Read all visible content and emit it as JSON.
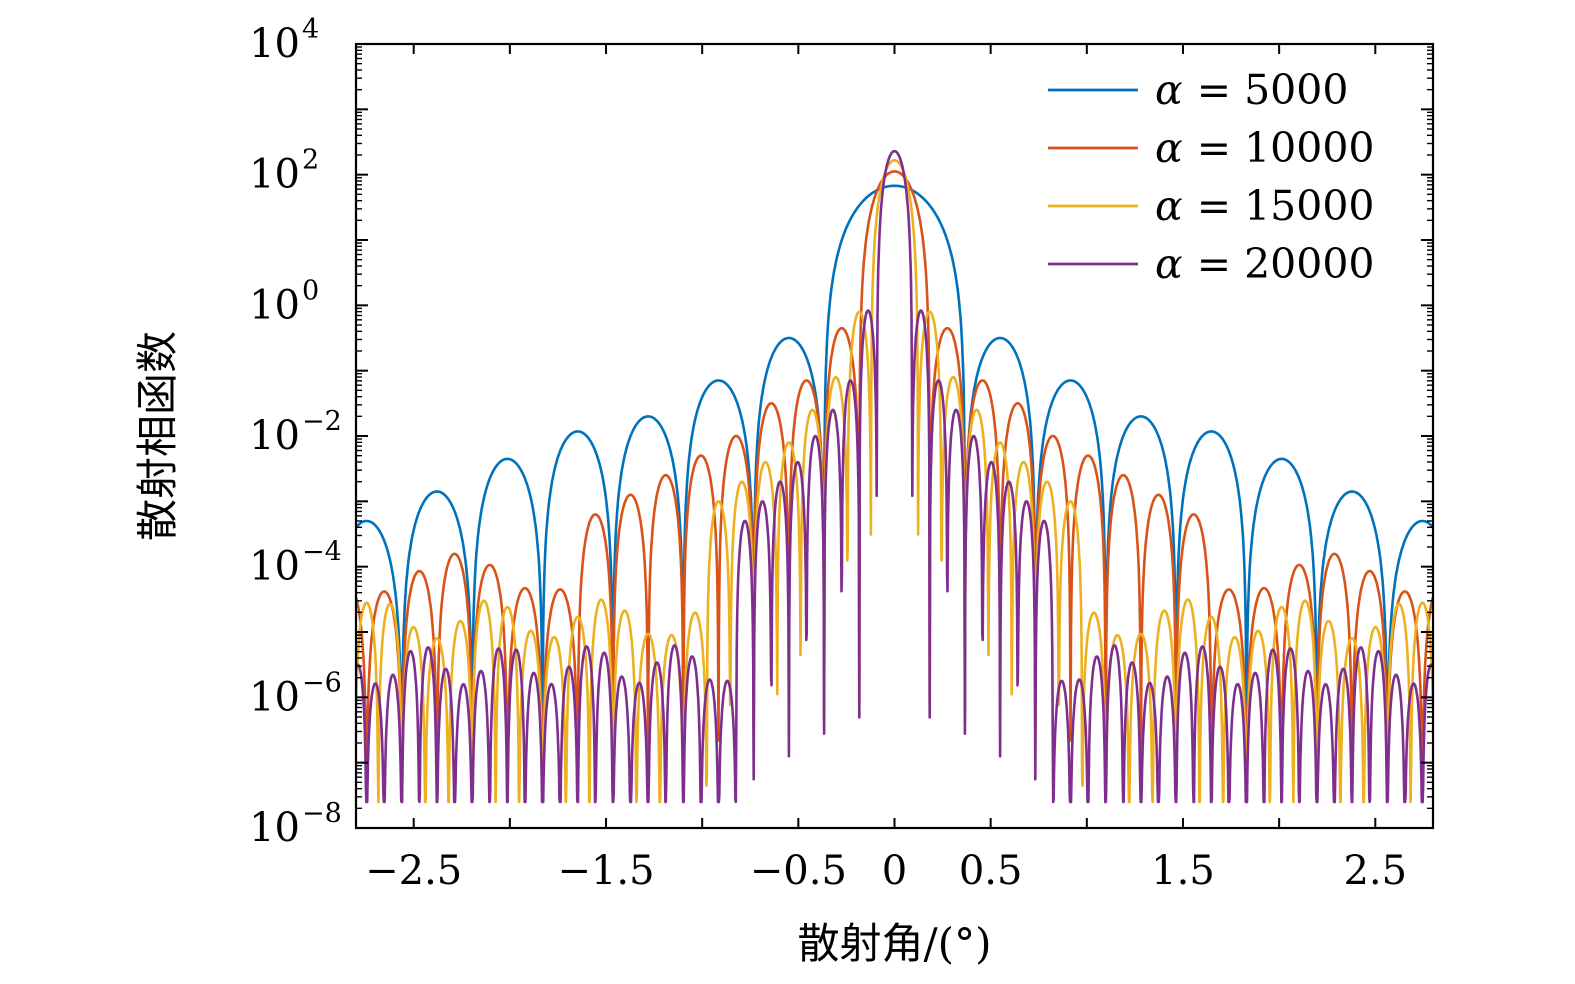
{
  "chart_data": {
    "type": "line",
    "title": "",
    "xlabel": "散射角/(°)",
    "ylabel": "散射相函数",
    "xlim": [
      -2.8,
      2.8
    ],
    "ylim_log10": [
      -8,
      4
    ],
    "x_ticks": [
      {
        "value": -2.5,
        "label": "−2.5"
      },
      {
        "value": -1.5,
        "label": "−1.5"
      },
      {
        "value": -0.5,
        "label": "−0.5"
      },
      {
        "value": 0,
        "label": "0"
      },
      {
        "value": 0.5,
        "label": "0.5"
      },
      {
        "value": 1.5,
        "label": "1.5"
      },
      {
        "value": 2.5,
        "label": "2.5"
      }
    ],
    "y_ticks": [
      {
        "value": 4,
        "base": "10",
        "exp": "4"
      },
      {
        "value": 2,
        "base": "10",
        "exp": "2"
      },
      {
        "value": 0,
        "base": "10",
        "exp": "0"
      },
      {
        "value": -2,
        "base": "10",
        "exp": "−2"
      },
      {
        "value": -4,
        "base": "10",
        "exp": "−4"
      },
      {
        "value": -6,
        "base": "10",
        "exp": "−6"
      },
      {
        "value": -8,
        "base": "10",
        "exp": "−8"
      }
    ],
    "legend_position": "top-right",
    "series": [
      {
        "name": "α = 5000",
        "alpha_symbol": "α",
        "label_value": "= 5000",
        "color": "#0072BD",
        "peak_log10": 1.83,
        "null_spacing_deg": 0.366,
        "floor_log10": -3.6,
        "sidelobe_log10": [
          -0.5,
          -1.15,
          -1.7,
          -1.93,
          -2.35,
          -2.85
        ]
      },
      {
        "name": "α = 10000",
        "alpha_symbol": "α",
        "label_value": "= 10000",
        "color": "#D95319",
        "peak_log10": 2.05,
        "null_spacing_deg": 0.183,
        "floor_log10": -4.1,
        "sidelobe_log10": [
          -0.35,
          -1.15,
          -1.5,
          -2.0,
          -2.3,
          -2.6,
          -2.9,
          -3.2
        ]
      },
      {
        "name": "α = 15000",
        "alpha_symbol": "α",
        "label_value": "= 15000",
        "color": "#EDB120",
        "peak_log10": 2.22,
        "null_spacing_deg": 0.122,
        "floor_log10": -4.8,
        "sidelobe_log10": [
          -0.1,
          -1.1,
          -1.6,
          -2.1,
          -2.4,
          -2.7,
          -3.0
        ]
      },
      {
        "name": "α = 20000",
        "alpha_symbol": "α",
        "label_value": "= 20000",
        "color": "#7E2F8E",
        "peak_log10": 2.36,
        "null_spacing_deg": 0.0915,
        "floor_log10": -5.5,
        "sidelobe_log10": [
          -0.08,
          -1.15,
          -1.6,
          -2.0,
          -2.4,
          -2.7,
          -3.0,
          -3.3
        ]
      }
    ]
  }
}
